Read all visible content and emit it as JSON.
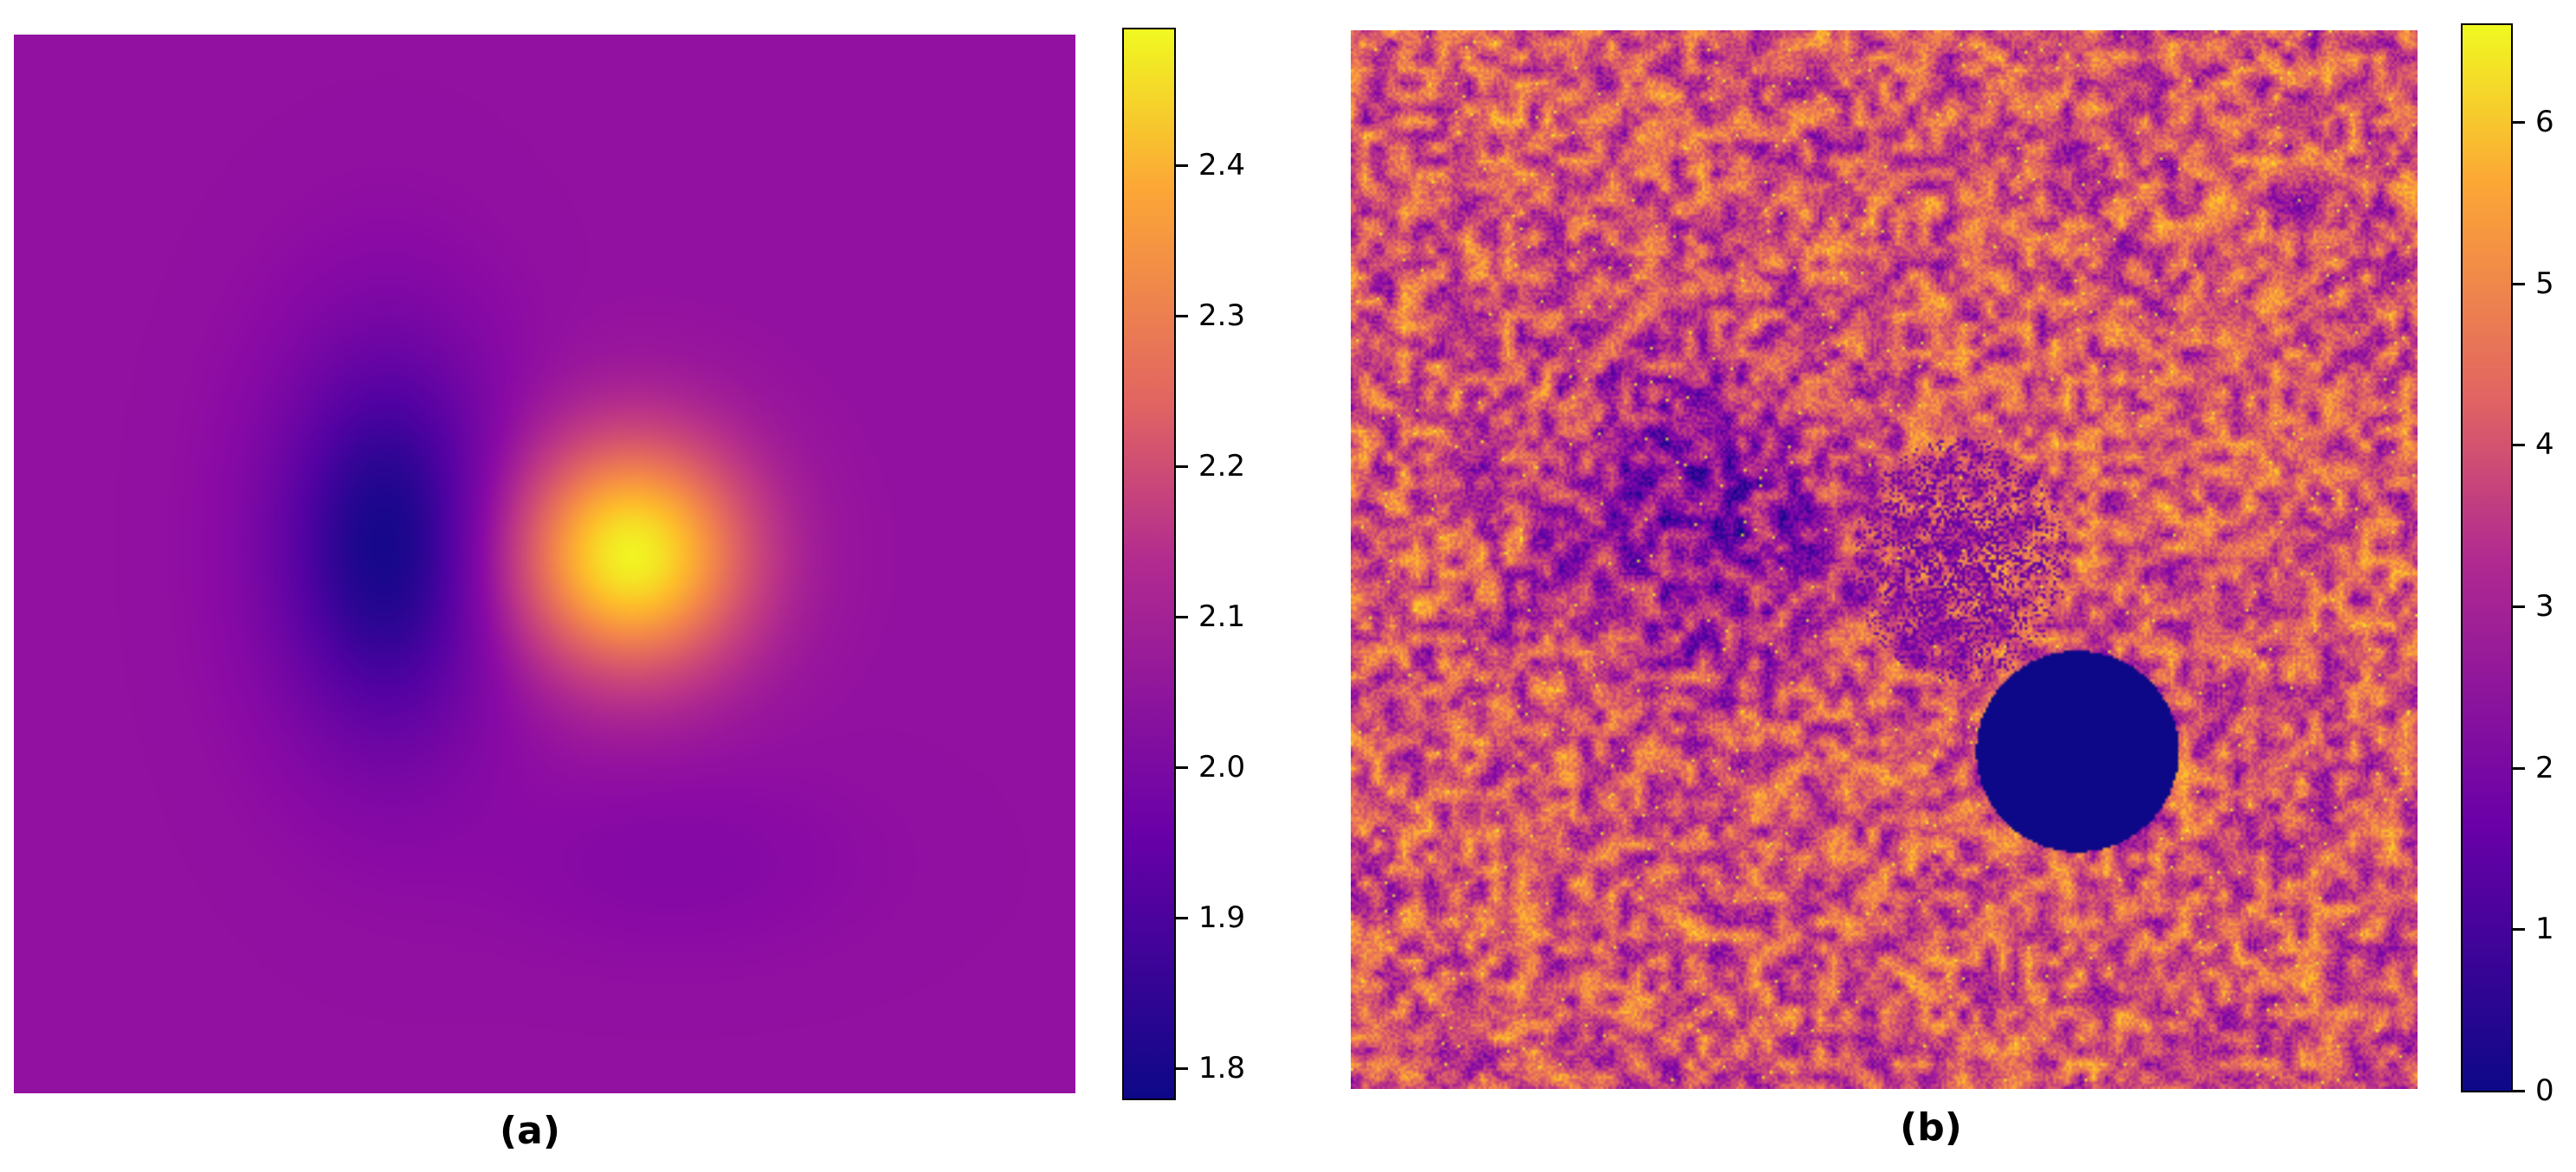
{
  "chart_data": [
    {
      "type": "heatmap",
      "caption": "(a)",
      "colormap": "plasma",
      "colorbar": {
        "min": 1.78,
        "max": 2.49,
        "ticks": [
          1.8,
          1.9,
          2.0,
          2.1,
          2.2,
          2.3,
          2.4
        ]
      },
      "background_value": 2.0,
      "features": [
        {
          "kind": "peak",
          "value": 2.48,
          "center": [
            0.58,
            0.49
          ]
        },
        {
          "kind": "trough",
          "value": 1.79,
          "center": [
            0.35,
            0.48
          ]
        }
      ]
    },
    {
      "type": "heatmap",
      "caption": "(b)",
      "colormap": "plasma",
      "colorbar": {
        "min": 0,
        "max": 6.6,
        "ticks": [
          0,
          1,
          2,
          3,
          4,
          5,
          6
        ]
      },
      "noise_mean": 3.5,
      "features": [
        {
          "kind": "masked-disk",
          "value": 0,
          "center": [
            0.68,
            0.68
          ],
          "radius": 0.095
        },
        {
          "kind": "low-region",
          "value": 1.5,
          "center": [
            0.32,
            0.45
          ]
        },
        {
          "kind": "speckled-region",
          "value": 3.5,
          "center": [
            0.57,
            0.5
          ]
        }
      ]
    }
  ]
}
